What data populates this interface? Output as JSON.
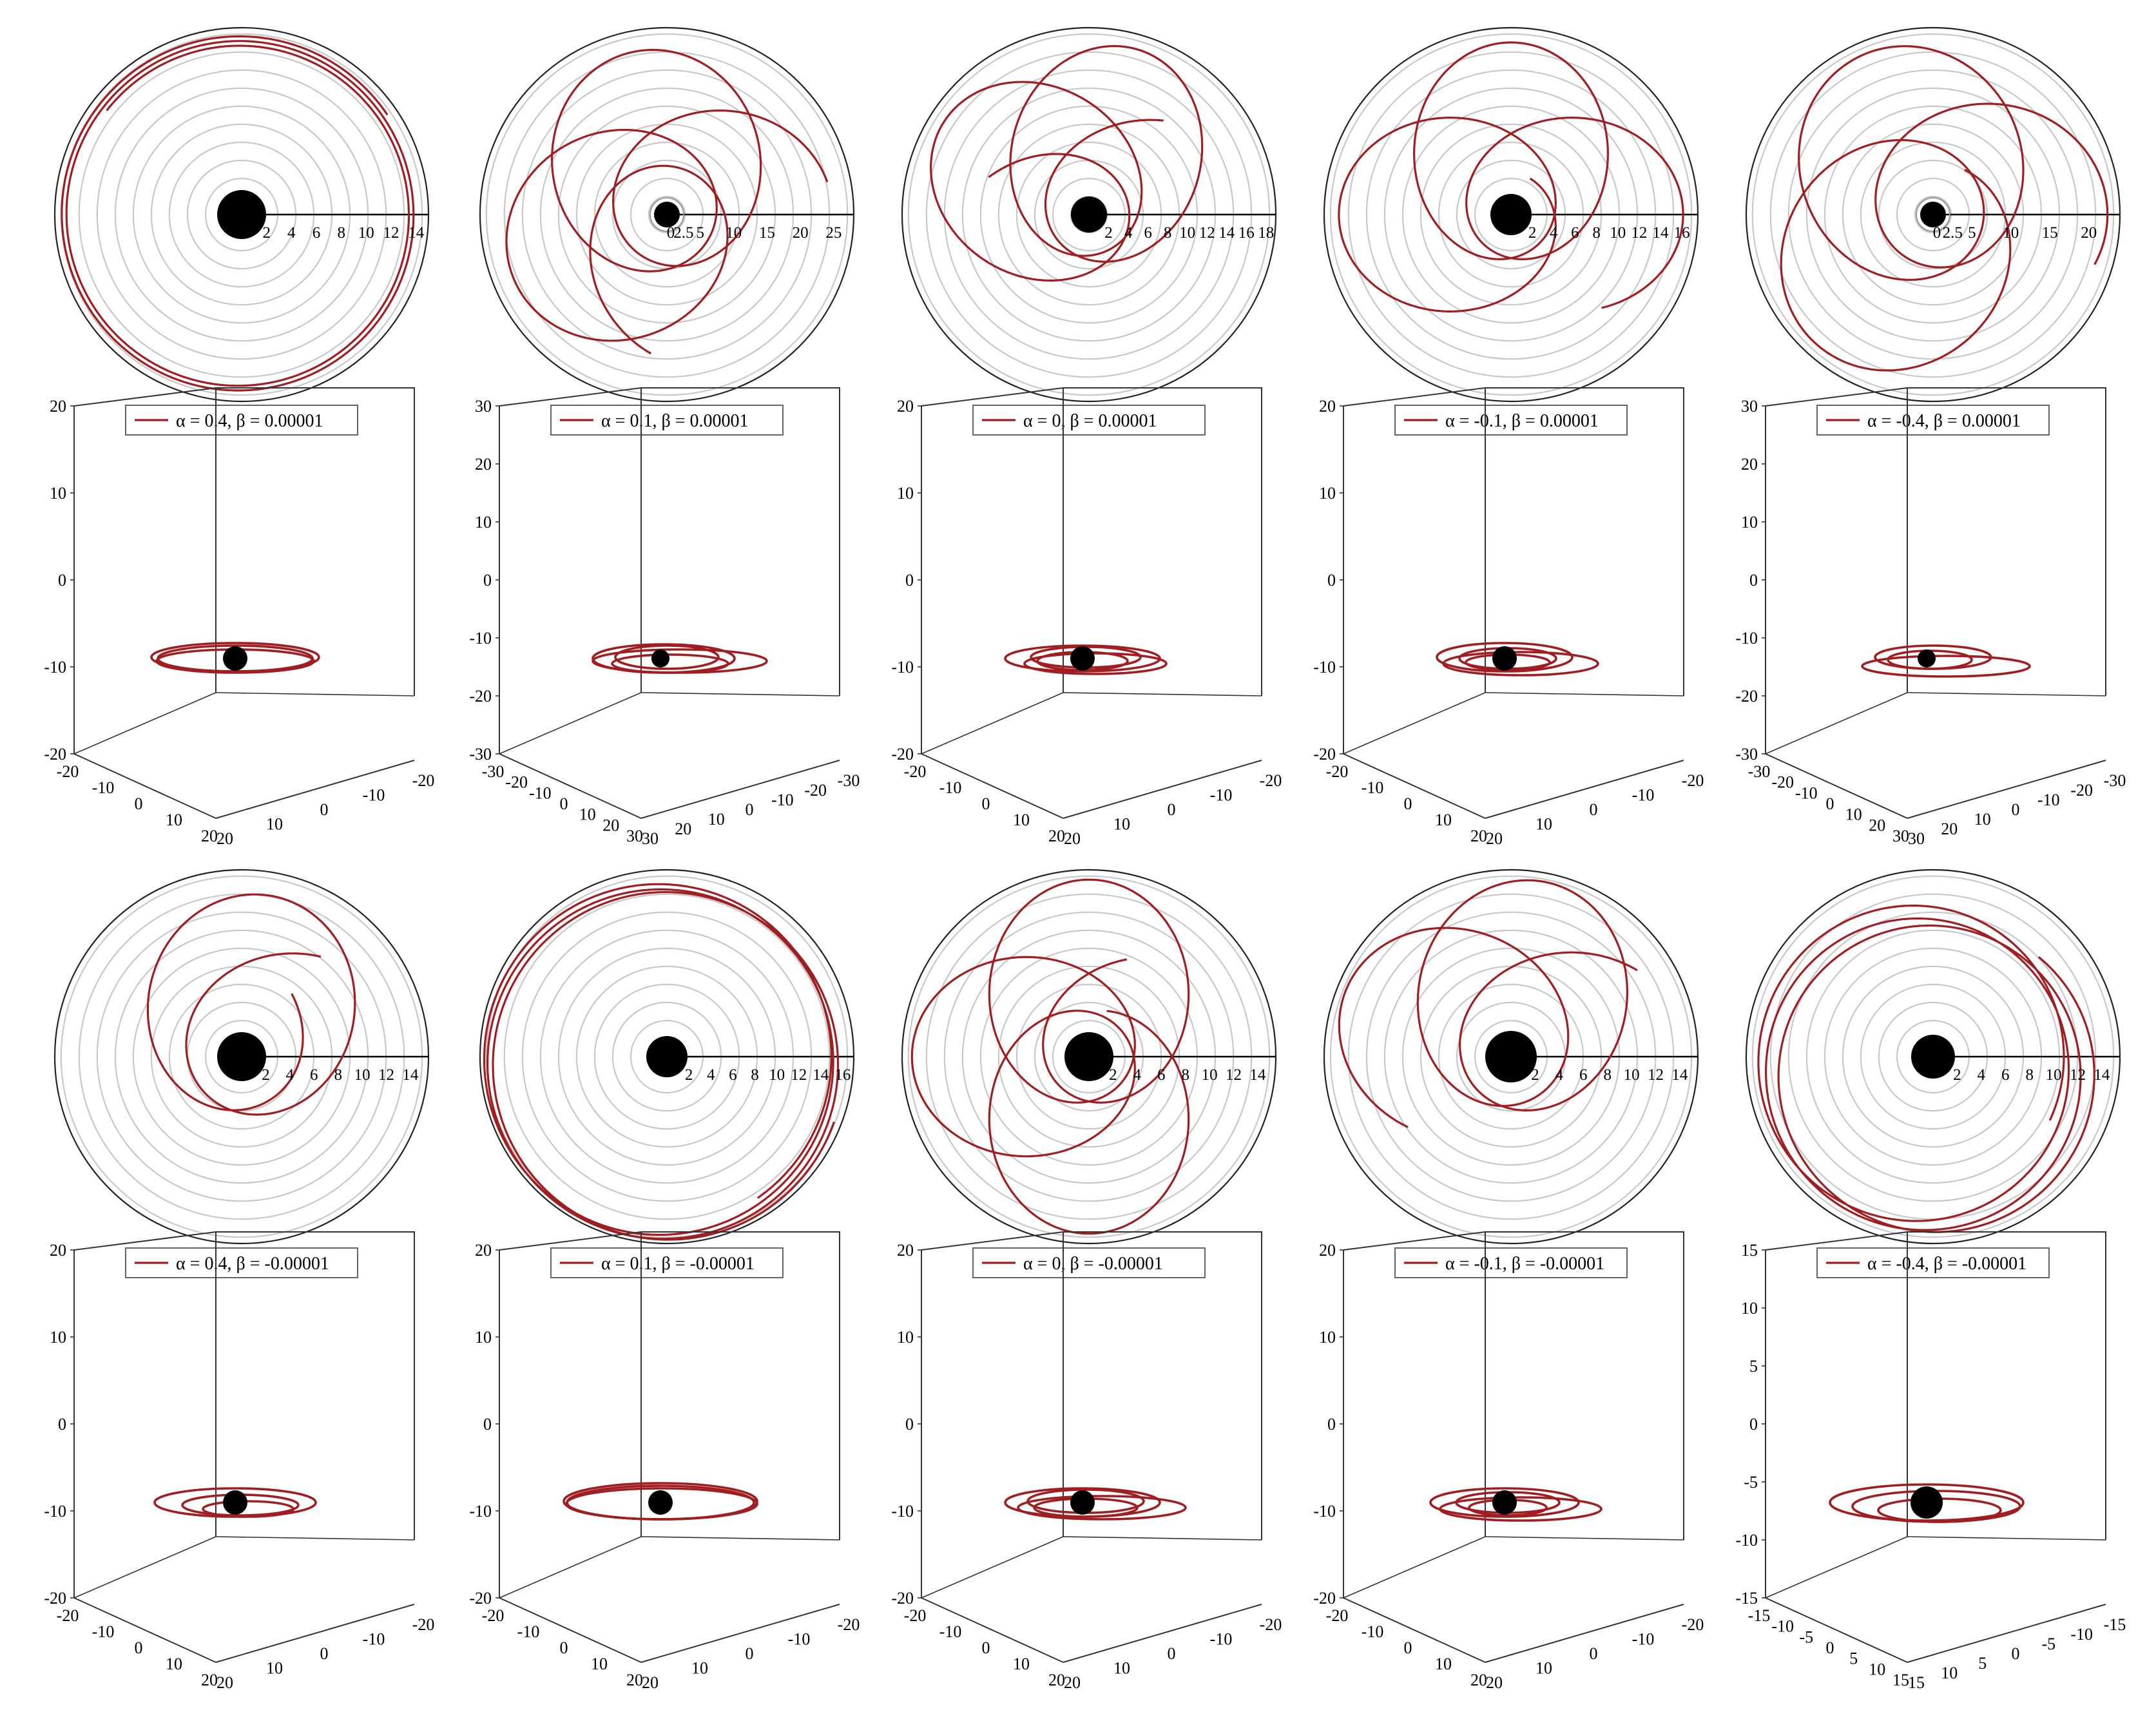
{
  "colors": {
    "orbit": "#a01e22",
    "grid": "#c8c8c8",
    "axis": "#000000",
    "hole": "#000000",
    "frame": "#555555"
  },
  "chart_data": [
    {
      "panel": "polar-r1-c1",
      "type": "polar-orbit",
      "legend": "α = 0.4, β = 0.00001",
      "r_ticks": [
        "2",
        "4",
        "6",
        "8",
        "10",
        "12",
        "14"
      ],
      "r_max": 15
    },
    {
      "panel": "polar-r1-c2",
      "type": "polar-orbit",
      "legend": "α = 0.1, β = 0.00001",
      "r_ticks": [
        "0",
        "2.5",
        "5",
        "10",
        "15",
        "20",
        "25"
      ],
      "r_max": 28
    },
    {
      "panel": "polar-r1-c3",
      "type": "polar-orbit",
      "legend": "α = 0, β = 0.00001",
      "r_ticks": [
        "2",
        "4",
        "6",
        "8",
        "10",
        "12",
        "14",
        "16",
        "18"
      ],
      "r_max": 19
    },
    {
      "panel": "polar-r1-c4",
      "type": "polar-orbit",
      "legend": "α = -0.1, β = 0.00001",
      "r_ticks": [
        "2",
        "4",
        "6",
        "8",
        "10",
        "12",
        "14",
        "16"
      ],
      "r_max": 17.5
    },
    {
      "panel": "polar-r1-c5",
      "type": "polar-orbit",
      "legend": "α = -0.4, β = 0.00001",
      "r_ticks": [
        "0",
        "2.5",
        "5",
        "10",
        "15",
        "20"
      ],
      "r_max": 24
    },
    {
      "panel": "3d-r2-c1",
      "type": "3d-orbit",
      "z_ticks": [
        "20",
        "10",
        "0",
        "-10",
        "-20"
      ],
      "x_ticks": [
        "-20",
        "-10",
        "0",
        "10",
        "20"
      ],
      "y_ticks": [
        "20",
        "10",
        "0",
        "-10",
        "-20"
      ]
    },
    {
      "panel": "3d-r2-c2",
      "type": "3d-orbit",
      "z_ticks": [
        "30",
        "20",
        "10",
        "0",
        "-10",
        "-20",
        "-30"
      ],
      "x_ticks": [
        "-30",
        "-20",
        "-10",
        "0",
        "10",
        "20",
        "30"
      ],
      "y_ticks": [
        "30",
        "20",
        "10",
        "0",
        "-10",
        "-20",
        "-30"
      ]
    },
    {
      "panel": "3d-r2-c3",
      "type": "3d-orbit",
      "z_ticks": [
        "20",
        "10",
        "0",
        "-10",
        "-20"
      ],
      "x_ticks": [
        "-20",
        "-10",
        "0",
        "10",
        "20"
      ],
      "y_ticks": [
        "20",
        "10",
        "0",
        "-10",
        "-20"
      ]
    },
    {
      "panel": "3d-r2-c4",
      "type": "3d-orbit",
      "z_ticks": [
        "20",
        "10",
        "0",
        "-10",
        "-20"
      ],
      "x_ticks": [
        "-20",
        "-10",
        "0",
        "10",
        "20"
      ],
      "y_ticks": [
        "20",
        "10",
        "0",
        "-10",
        "-20"
      ]
    },
    {
      "panel": "3d-r2-c5",
      "type": "3d-orbit",
      "z_ticks": [
        "30",
        "20",
        "10",
        "0",
        "-10",
        "-20",
        "-30"
      ],
      "x_ticks": [
        "-30",
        "-20",
        "-10",
        "0",
        "10",
        "20",
        "30"
      ],
      "y_ticks": [
        "30",
        "20",
        "10",
        "0",
        "-10",
        "-20",
        "-30"
      ]
    },
    {
      "panel": "polar-r3-c1",
      "type": "polar-orbit",
      "legend": "α = 0.4, β = -0.00001",
      "r_ticks": [
        "2",
        "4",
        "6",
        "8",
        "10",
        "12",
        "14"
      ],
      "r_max": 15.5
    },
    {
      "panel": "polar-r3-c2",
      "type": "polar-orbit",
      "legend": "α = 0.1, β = -0.00001",
      "r_ticks": [
        "2",
        "4",
        "6",
        "8",
        "10",
        "12",
        "14",
        "16"
      ],
      "r_max": 17
    },
    {
      "panel": "polar-r3-c3",
      "type": "polar-orbit",
      "legend": "α = 0, β = -0.00001",
      "r_ticks": [
        "2",
        "4",
        "6",
        "8",
        "10",
        "12",
        "14"
      ],
      "r_max": 15.5
    },
    {
      "panel": "polar-r3-c4",
      "type": "polar-orbit",
      "legend": "α = -0.1, β = -0.00001",
      "r_ticks": [
        "2",
        "4",
        "6",
        "8",
        "10",
        "12",
        "14"
      ],
      "r_max": 15.5
    },
    {
      "panel": "polar-r3-c5",
      "type": "polar-orbit",
      "legend": "α = -0.4, β = -0.00001",
      "r_ticks": [
        "2",
        "4",
        "6",
        "8",
        "10",
        "12",
        "14"
      ],
      "r_max": 15.5
    },
    {
      "panel": "3d-r4-c1",
      "type": "3d-orbit",
      "z_ticks": [
        "20",
        "10",
        "0",
        "-10",
        "-20"
      ],
      "x_ticks": [
        "-20",
        "-10",
        "0",
        "10",
        "20"
      ],
      "y_ticks": [
        "20",
        "10",
        "0",
        "-10",
        "-20"
      ]
    },
    {
      "panel": "3d-r4-c2",
      "type": "3d-orbit",
      "z_ticks": [
        "20",
        "10",
        "0",
        "-10",
        "-20"
      ],
      "x_ticks": [
        "-20",
        "-10",
        "0",
        "10",
        "20"
      ],
      "y_ticks": [
        "20",
        "10",
        "0",
        "-10",
        "-20"
      ]
    },
    {
      "panel": "3d-r4-c3",
      "type": "3d-orbit",
      "z_ticks": [
        "20",
        "10",
        "0",
        "-10",
        "-20"
      ],
      "x_ticks": [
        "-20",
        "-10",
        "0",
        "10",
        "20"
      ],
      "y_ticks": [
        "20",
        "10",
        "0",
        "-10",
        "-20"
      ]
    },
    {
      "panel": "3d-r4-c4",
      "type": "3d-orbit",
      "z_ticks": [
        "20",
        "10",
        "0",
        "-10",
        "-20"
      ],
      "x_ticks": [
        "-20",
        "-10",
        "0",
        "10",
        "20"
      ],
      "y_ticks": [
        "20",
        "10",
        "0",
        "-10",
        "-20"
      ]
    },
    {
      "panel": "3d-r4-c5",
      "type": "3d-orbit",
      "z_ticks": [
        "15",
        "10",
        "5",
        "0",
        "-5",
        "-10",
        "-15"
      ],
      "x_ticks": [
        "-15",
        "-10",
        "-5",
        "0",
        "5",
        "10",
        "15"
      ],
      "y_ticks": [
        "15",
        "10",
        "5",
        "0",
        "-5",
        "-10",
        "-15"
      ]
    }
  ]
}
